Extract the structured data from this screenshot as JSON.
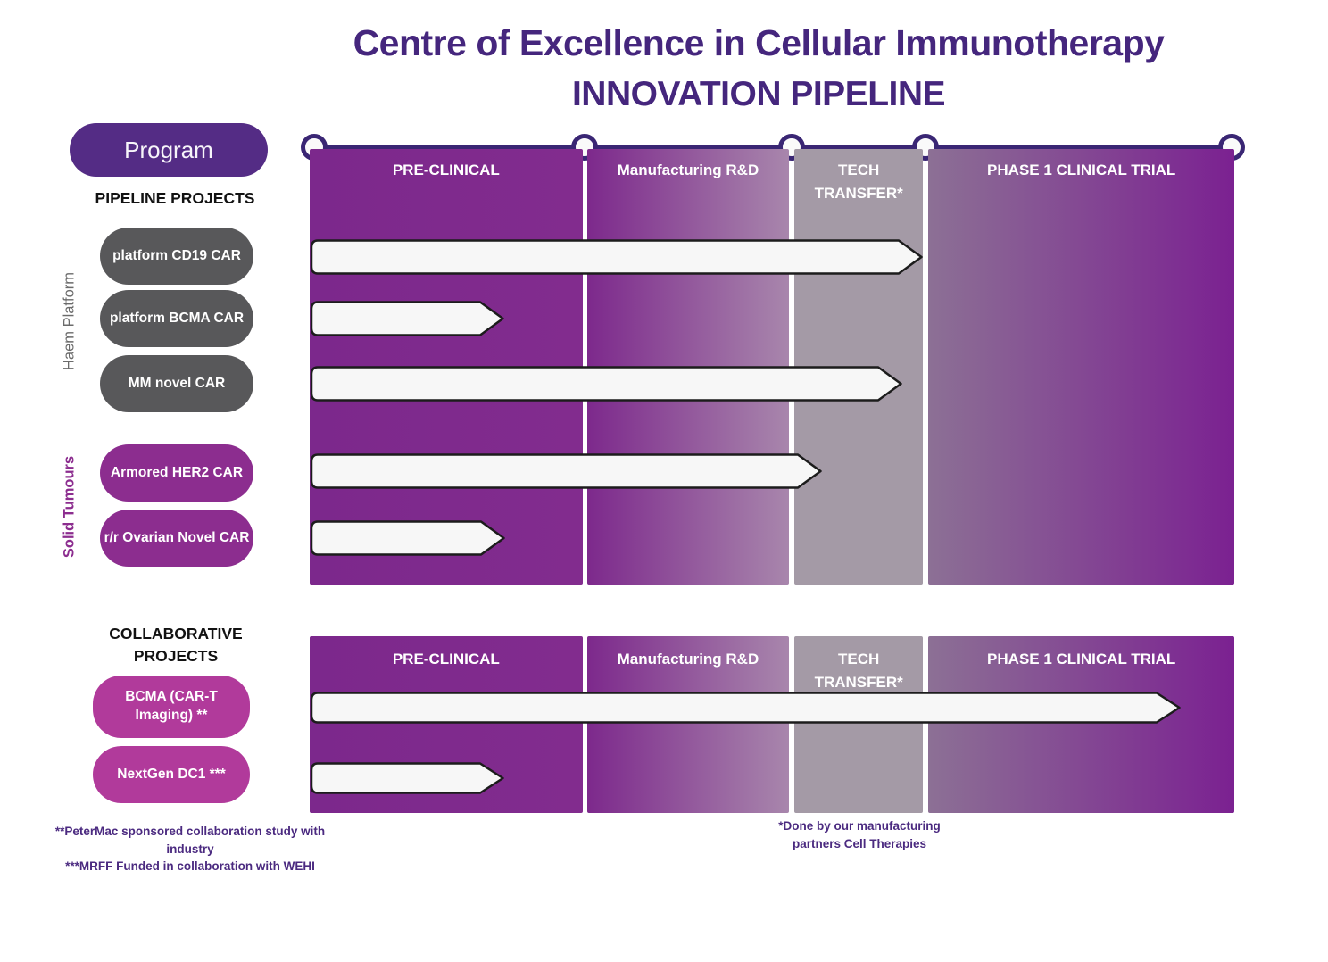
{
  "title": {
    "line1": "Centre of Excellence in Cellular Immunotherapy",
    "line2": "INNOVATION PIPELINE"
  },
  "program_label": "Program",
  "chart": {
    "columns": [
      {
        "label": "PRE-CLINICAL"
      },
      {
        "label": "Manufacturing R&D"
      },
      {
        "label": "TECH TRANSFER*"
      },
      {
        "label": "PHASE 1 CLINICAL TRIAL"
      }
    ]
  },
  "sections": {
    "pipeline": {
      "heading": "PIPELINE PROJECTS",
      "groups": [
        {
          "label": "Haem Platform"
        },
        {
          "label": "Solid Tumours"
        }
      ],
      "rows": [
        {
          "label": "platform CD19 CAR",
          "group": "Haem Platform",
          "pill_color": "#58585a",
          "arrow_end_pct": 66.4
        },
        {
          "label": "platform BCMA CAR",
          "group": "Haem Platform",
          "pill_color": "#58585a",
          "arrow_end_pct": 21.1
        },
        {
          "label": "MM novel CAR",
          "group": "Haem Platform",
          "pill_color": "#58585a",
          "arrow_end_pct": 64.2
        },
        {
          "label": "Armored HER2 CAR",
          "group": "Solid Tumours",
          "pill_color": "#8c2d8f",
          "arrow_end_pct": 55.5
        },
        {
          "label": "r/r Ovarian Novel CAR",
          "group": "Solid Tumours",
          "pill_color": "#8c2d8f",
          "arrow_end_pct": 21.2
        }
      ]
    },
    "collaborative": {
      "heading": "COLLABORATIVE PROJECTS",
      "rows": [
        {
          "label": "BCMA (CAR-T Imaging) **",
          "pill_color": "#b13a9b",
          "arrow_end_pct": 94.3
        },
        {
          "label": "NextGen DC1 ***",
          "pill_color": "#b13a9b",
          "arrow_end_pct": 21.1
        }
      ]
    }
  },
  "footnotes": {
    "left_1": "**PeterMac sponsored collaboration study with industry",
    "left_2": "***MRFF Funded in collaboration with WEHI",
    "tech_transfer": "*Done by our manufacturing partners Cell Therapies"
  },
  "colors": {
    "title_text": "#45267d",
    "program_pill": "#542c85",
    "timeline": "#3a2674",
    "pill_gray": "#58585a",
    "pill_purple": "#8c2d8f",
    "pill_magenta": "#b13a9b",
    "col_preclinical": "#7e298d",
    "col_manufacturing_gradient": [
      "#7d298c",
      "#a886ac"
    ],
    "col_tech_transfer": "#a49aa6",
    "col_phase1_gradient": [
      "#8c7095",
      "#7b2191"
    ],
    "arrow_fill": "#f7f7f7",
    "arrow_stroke": "#1c1c1c",
    "footnote_text": "#4b2a80"
  }
}
